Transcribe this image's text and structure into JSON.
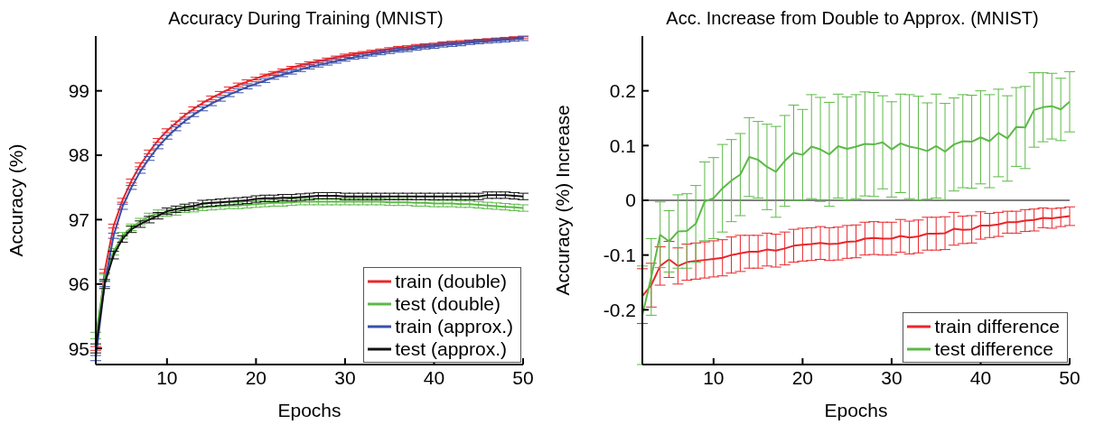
{
  "chart_data": [
    {
      "type": "line",
      "title": "Accuracy During Training (MNIST)",
      "xlabel": "Epochs",
      "ylabel": "Accuracy (%)",
      "x": [
        2,
        3,
        4,
        5,
        6,
        7,
        8,
        9,
        10,
        11,
        12,
        13,
        14,
        15,
        16,
        17,
        18,
        19,
        20,
        21,
        22,
        23,
        24,
        25,
        26,
        27,
        28,
        29,
        30,
        31,
        32,
        33,
        34,
        35,
        36,
        37,
        38,
        39,
        40,
        41,
        42,
        43,
        44,
        45,
        46,
        47,
        48,
        49,
        50
      ],
      "xlim": [
        2,
        50
      ],
      "xticks": [
        10,
        20,
        30,
        40,
        50
      ],
      "ylim": [
        94.75,
        99.85
      ],
      "yticks": [
        95,
        96,
        97,
        98,
        99
      ],
      "grid": false,
      "legend": "bottom right",
      "marker": "none",
      "line_style": "solid",
      "series": [
        {
          "name": "train (double)",
          "color": "#e8262b",
          "values": [
            95.0,
            96.2,
            96.9,
            97.3,
            97.6,
            97.85,
            98.05,
            98.23,
            98.38,
            98.5,
            98.62,
            98.72,
            98.81,
            98.89,
            98.96,
            99.03,
            99.09,
            99.14,
            99.19,
            99.24,
            99.28,
            99.32,
            99.36,
            99.4,
            99.43,
            99.46,
            99.49,
            99.52,
            99.55,
            99.57,
            99.59,
            99.61,
            99.63,
            99.65,
            99.67,
            99.68,
            99.7,
            99.71,
            99.72,
            99.74,
            99.75,
            99.76,
            99.77,
            99.78,
            99.79,
            99.8,
            99.81,
            99.82,
            99.83
          ],
          "errors": [
            0.03,
            0.03,
            0.03,
            0.03,
            0.03,
            0.03,
            0.03,
            0.03,
            0.03,
            0.03,
            0.03,
            0.03,
            0.03,
            0.03,
            0.03,
            0.03,
            0.03,
            0.03,
            0.02,
            0.02,
            0.02,
            0.02,
            0.02,
            0.02,
            0.02,
            0.02,
            0.02,
            0.02,
            0.02,
            0.02,
            0.02,
            0.02,
            0.02,
            0.02,
            0.02,
            0.02,
            0.02,
            0.02,
            0.02,
            0.02,
            0.02,
            0.02,
            0.02,
            0.02,
            0.02,
            0.02,
            0.02,
            0.02,
            0.02
          ]
        },
        {
          "name": "test (double)",
          "color": "#5cb947",
          "values": [
            95.2,
            96.1,
            96.5,
            96.75,
            96.88,
            96.97,
            97.05,
            97.1,
            97.1,
            97.12,
            97.16,
            97.17,
            97.19,
            97.2,
            97.21,
            97.22,
            97.22,
            97.23,
            97.24,
            97.25,
            97.26,
            97.26,
            97.27,
            97.28,
            97.28,
            97.28,
            97.28,
            97.28,
            97.28,
            97.28,
            97.28,
            97.28,
            97.28,
            97.27,
            97.27,
            97.27,
            97.26,
            97.26,
            97.25,
            97.25,
            97.25,
            97.24,
            97.24,
            97.23,
            97.22,
            97.21,
            97.2,
            97.19,
            97.18
          ],
          "errors": [
            0.05,
            0.05,
            0.05,
            0.05,
            0.05,
            0.05,
            0.05,
            0.05,
            0.05,
            0.05,
            0.05,
            0.05,
            0.05,
            0.05,
            0.05,
            0.05,
            0.05,
            0.05,
            0.05,
            0.05,
            0.05,
            0.05,
            0.05,
            0.05,
            0.05,
            0.05,
            0.05,
            0.05,
            0.05,
            0.05,
            0.05,
            0.05,
            0.05,
            0.05,
            0.05,
            0.05,
            0.05,
            0.05,
            0.05,
            0.05,
            0.05,
            0.05,
            0.05,
            0.05,
            0.05,
            0.05,
            0.05,
            0.05,
            0.05
          ]
        },
        {
          "name": "train (approx.)",
          "color": "#3a4fa8",
          "values": [
            94.85,
            96.0,
            96.75,
            97.2,
            97.5,
            97.75,
            97.95,
            98.13,
            98.28,
            98.41,
            98.53,
            98.63,
            98.72,
            98.8,
            98.87,
            98.94,
            99.0,
            99.06,
            99.11,
            99.16,
            99.21,
            99.25,
            99.29,
            99.33,
            99.37,
            99.4,
            99.43,
            99.46,
            99.49,
            99.52,
            99.54,
            99.57,
            99.59,
            99.61,
            99.63,
            99.64,
            99.66,
            99.68,
            99.69,
            99.71,
            99.72,
            99.73,
            99.75,
            99.76,
            99.77,
            99.78,
            99.79,
            99.8,
            99.81
          ],
          "errors": [
            0.04,
            0.04,
            0.04,
            0.04,
            0.03,
            0.03,
            0.03,
            0.03,
            0.03,
            0.03,
            0.03,
            0.03,
            0.03,
            0.03,
            0.03,
            0.03,
            0.03,
            0.03,
            0.03,
            0.03,
            0.03,
            0.03,
            0.03,
            0.03,
            0.03,
            0.03,
            0.03,
            0.03,
            0.03,
            0.03,
            0.03,
            0.03,
            0.03,
            0.03,
            0.03,
            0.03,
            0.03,
            0.03,
            0.03,
            0.03,
            0.03,
            0.03,
            0.03,
            0.03,
            0.03,
            0.03,
            0.03,
            0.03,
            0.03
          ]
        },
        {
          "name": "test (approx.)",
          "color": "#111111",
          "values": [
            95.0,
            96.0,
            96.45,
            96.7,
            96.85,
            96.93,
            97.0,
            97.06,
            97.13,
            97.16,
            97.19,
            97.21,
            97.25,
            97.26,
            97.27,
            97.28,
            97.29,
            97.3,
            97.32,
            97.33,
            97.33,
            97.34,
            97.34,
            97.35,
            97.36,
            97.37,
            97.37,
            97.37,
            97.36,
            97.36,
            97.36,
            97.36,
            97.36,
            97.36,
            97.36,
            97.36,
            97.36,
            97.36,
            97.36,
            97.36,
            97.36,
            97.36,
            97.36,
            97.36,
            97.38,
            97.38,
            97.38,
            97.37,
            97.36
          ],
          "errors": [
            0.07,
            0.07,
            0.06,
            0.05,
            0.05,
            0.05,
            0.05,
            0.05,
            0.05,
            0.05,
            0.05,
            0.05,
            0.05,
            0.05,
            0.05,
            0.05,
            0.05,
            0.05,
            0.05,
            0.05,
            0.05,
            0.05,
            0.05,
            0.05,
            0.05,
            0.05,
            0.05,
            0.05,
            0.05,
            0.05,
            0.05,
            0.05,
            0.05,
            0.05,
            0.05,
            0.05,
            0.05,
            0.05,
            0.05,
            0.05,
            0.05,
            0.05,
            0.05,
            0.05,
            0.05,
            0.05,
            0.05,
            0.05,
            0.05
          ]
        }
      ]
    },
    {
      "type": "line",
      "title": "Acc. Increase from Double to Approx. (MNIST)",
      "xlabel": "Epochs",
      "ylabel": "Accuracy (%) Increase",
      "x": [
        2,
        3,
        4,
        5,
        6,
        7,
        8,
        9,
        10,
        11,
        12,
        13,
        14,
        15,
        16,
        17,
        18,
        19,
        20,
        21,
        22,
        23,
        24,
        25,
        26,
        27,
        28,
        29,
        30,
        31,
        32,
        33,
        34,
        35,
        36,
        37,
        38,
        39,
        40,
        41,
        42,
        43,
        44,
        45,
        46,
        47,
        48,
        49,
        50
      ],
      "xlim": [
        2,
        50
      ],
      "xticks": [
        10,
        20,
        30,
        40,
        50
      ],
      "ylim": [
        -0.3,
        0.3
      ],
      "yticks": [
        -0.2,
        -0.1,
        0,
        0.1,
        0.2
      ],
      "grid": false,
      "legend": "bottom right",
      "marker": "none",
      "line_style": "solid",
      "ref_lines": [
        {
          "axis": "y",
          "value": 0,
          "color": "#000000"
        }
      ],
      "series": [
        {
          "name": "train difference",
          "color": "#e8262b",
          "values": [
            -0.175,
            -0.155,
            -0.12,
            -0.108,
            -0.12,
            -0.113,
            -0.111,
            -0.109,
            -0.107,
            -0.105,
            -0.1,
            -0.097,
            -0.094,
            -0.094,
            -0.09,
            -0.092,
            -0.088,
            -0.083,
            -0.081,
            -0.08,
            -0.078,
            -0.08,
            -0.079,
            -0.076,
            -0.075,
            -0.07,
            -0.069,
            -0.07,
            -0.07,
            -0.065,
            -0.068,
            -0.066,
            -0.061,
            -0.061,
            -0.06,
            -0.052,
            -0.054,
            -0.053,
            -0.046,
            -0.046,
            -0.044,
            -0.04,
            -0.04,
            -0.037,
            -0.036,
            -0.032,
            -0.033,
            -0.031,
            -0.029
          ],
          "errors": [
            0.05,
            0.04,
            0.035,
            0.033,
            0.033,
            0.033,
            0.033,
            0.033,
            0.033,
            0.033,
            0.033,
            0.033,
            0.03,
            0.03,
            0.03,
            0.03,
            0.03,
            0.03,
            0.03,
            0.03,
            0.03,
            0.03,
            0.03,
            0.03,
            0.03,
            0.03,
            0.03,
            0.03,
            0.03,
            0.03,
            0.03,
            0.03,
            0.03,
            0.03,
            0.03,
            0.03,
            0.025,
            0.025,
            0.025,
            0.022,
            0.022,
            0.02,
            0.02,
            0.02,
            0.02,
            0.018,
            0.018,
            0.017,
            0.017
          ]
        },
        {
          "name": "test difference",
          "color": "#5cb947",
          "values": [
            -0.21,
            -0.14,
            -0.063,
            -0.075,
            -0.057,
            -0.056,
            -0.043,
            -0.002,
            0.004,
            0.022,
            0.036,
            0.047,
            0.079,
            0.074,
            0.061,
            0.052,
            0.072,
            0.087,
            0.083,
            0.098,
            0.093,
            0.084,
            0.099,
            0.094,
            0.098,
            0.103,
            0.102,
            0.106,
            0.093,
            0.104,
            0.098,
            0.095,
            0.09,
            0.099,
            0.089,
            0.102,
            0.108,
            0.107,
            0.115,
            0.108,
            0.123,
            0.113,
            0.134,
            0.133,
            0.165,
            0.17,
            0.172,
            0.166,
            0.18
          ],
          "errors": [
            0.09,
            0.07,
            0.06,
            0.056,
            0.067,
            0.068,
            0.07,
            0.072,
            0.074,
            0.08,
            0.075,
            0.075,
            0.072,
            0.07,
            0.078,
            0.083,
            0.083,
            0.087,
            0.083,
            0.095,
            0.095,
            0.095,
            0.095,
            0.095,
            0.095,
            0.095,
            0.095,
            0.085,
            0.087,
            0.09,
            0.095,
            0.095,
            0.088,
            0.095,
            0.088,
            0.085,
            0.085,
            0.085,
            0.085,
            0.085,
            0.08,
            0.078,
            0.072,
            0.075,
            0.068,
            0.063,
            0.06,
            0.057,
            0.055
          ]
        }
      ]
    }
  ]
}
